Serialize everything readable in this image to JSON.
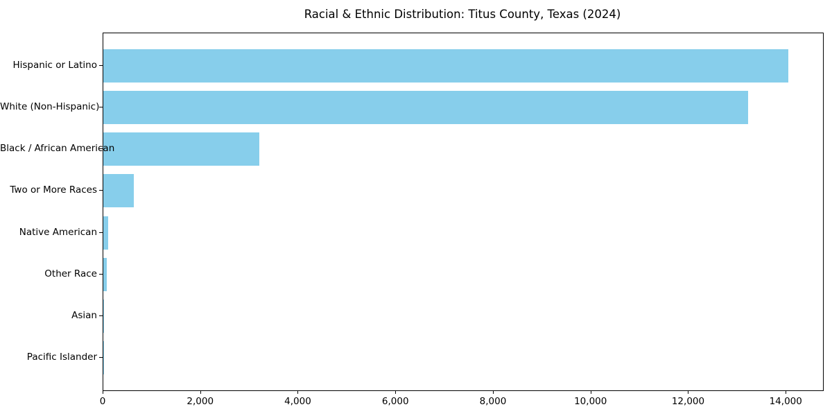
{
  "title": "Racial & Ethnic Distribution: Titus County, Texas (2024)",
  "colors": {
    "bar": "#87CEEB",
    "axis": "#000000",
    "text": "#000000",
    "background": "#FFFFFF"
  },
  "chart_data": {
    "type": "bar",
    "orientation": "horizontal",
    "title": "Racial & Ethnic Distribution: Titus County, Texas (2024)",
    "categories": [
      "Hispanic or Latino",
      "White (Non-Hispanic)",
      "Black / African American",
      "Two or More Races",
      "Native American",
      "Other Race",
      "Asian",
      "Pacific Islander"
    ],
    "values": [
      14040,
      13220,
      3200,
      630,
      100,
      70,
      12,
      6
    ],
    "xlabel": "",
    "ylabel": "",
    "xlim": [
      0,
      14750
    ],
    "xticks": [
      0,
      2000,
      4000,
      6000,
      8000,
      10000,
      12000,
      14000
    ],
    "xtick_format": "thousands-comma",
    "grid": false,
    "legend": null,
    "bar_color": "#87CEEB",
    "bar_relative_height": 0.8
  }
}
